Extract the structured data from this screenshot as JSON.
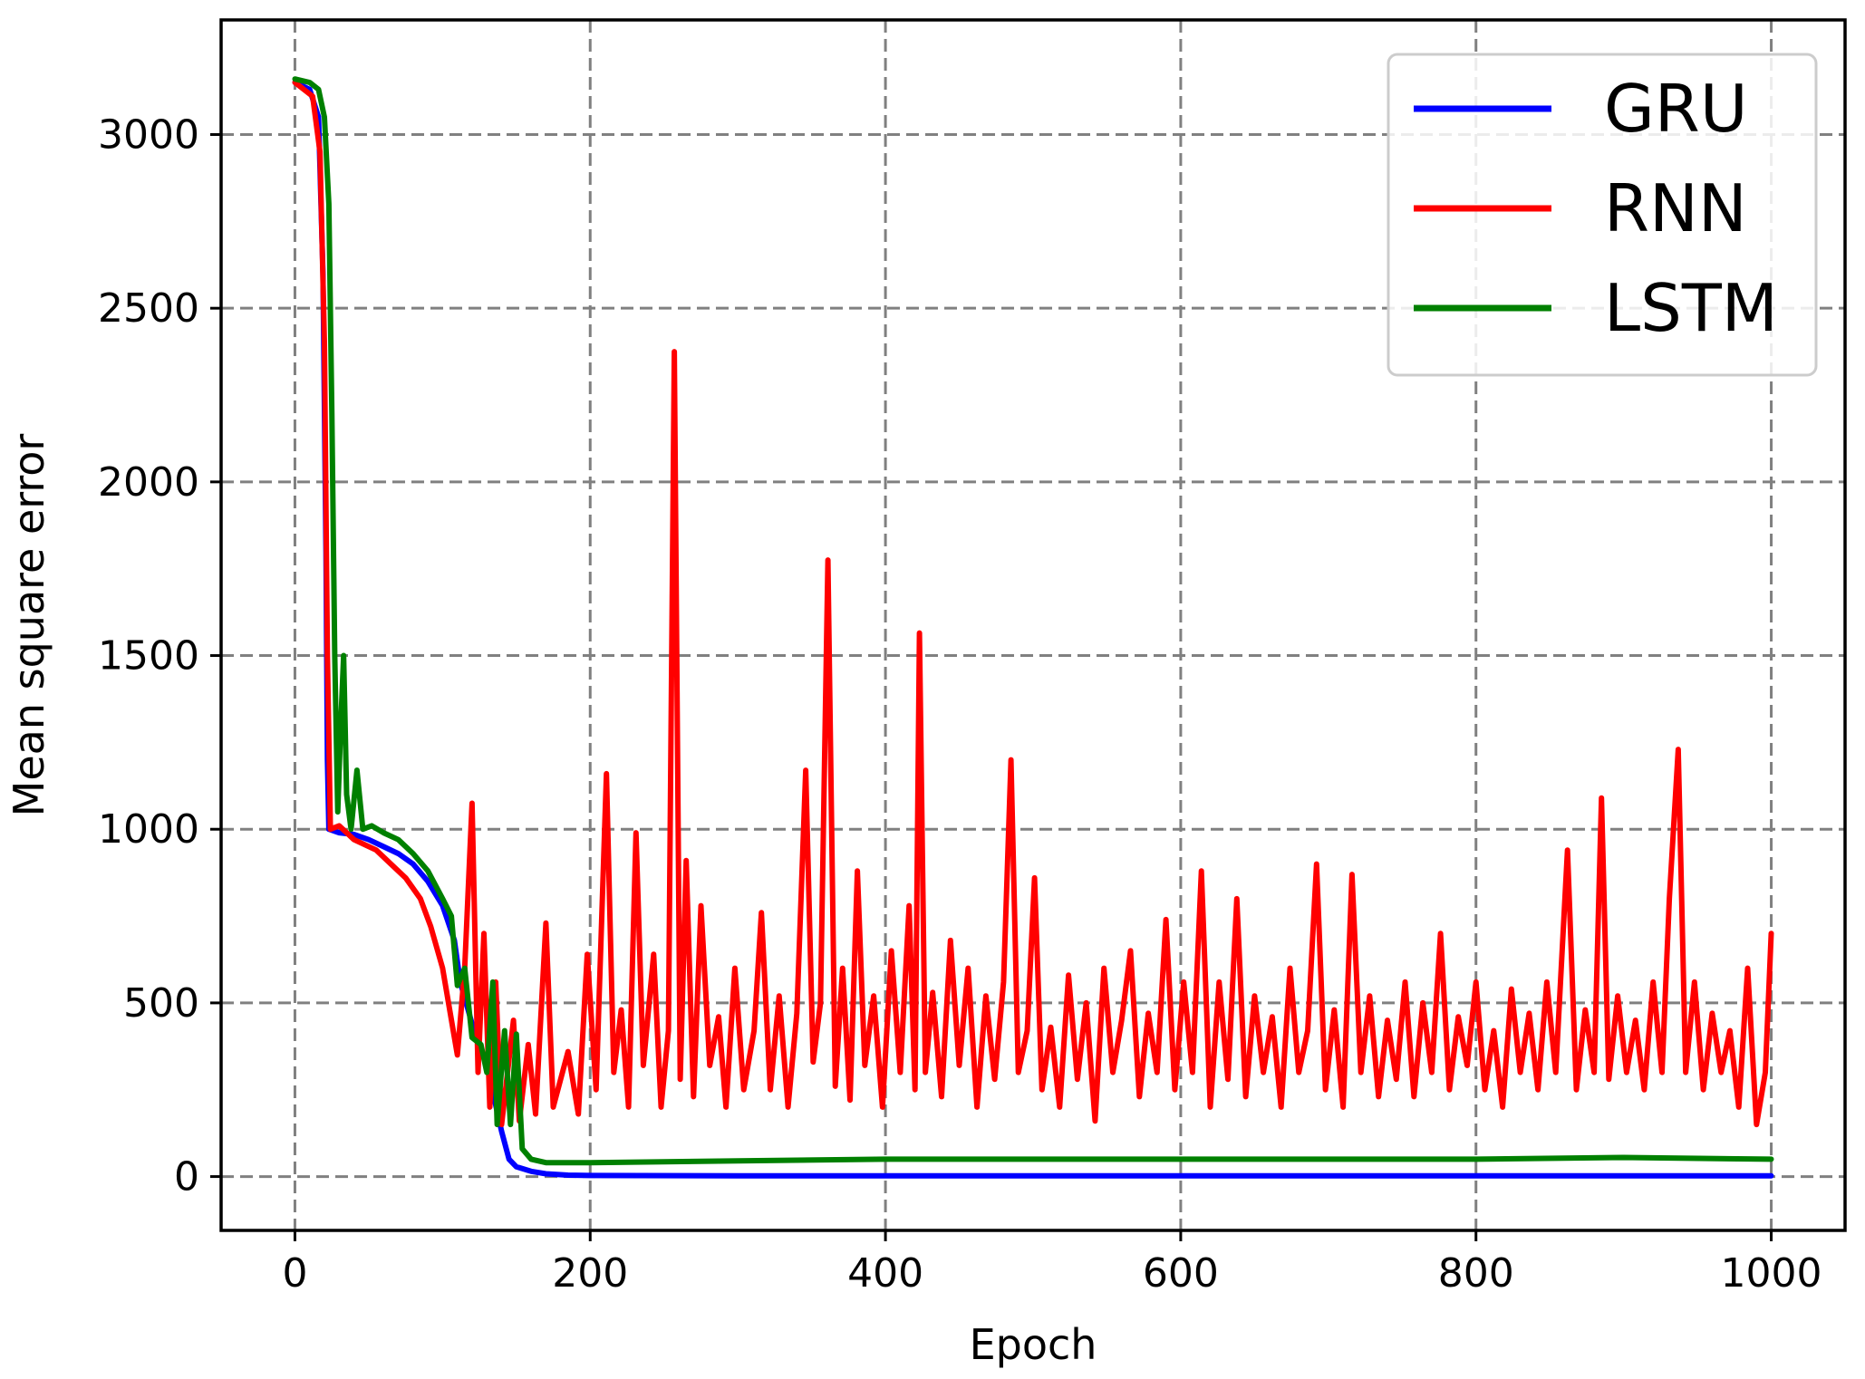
{
  "chart_data": {
    "type": "line",
    "title": "",
    "xlabel": "Epoch",
    "ylabel": "Mean square error",
    "xlim": [
      -50,
      1050
    ],
    "ylim": [
      -155,
      3330
    ],
    "xticks": [
      0,
      200,
      400,
      600,
      800,
      1000
    ],
    "yticks": [
      0,
      500,
      1000,
      1500,
      2000,
      2500,
      3000
    ],
    "grid": true,
    "legend": "top-right",
    "series": [
      {
        "name": "GRU",
        "color": "#0000ff",
        "points": [
          [
            0,
            3150
          ],
          [
            10,
            3130
          ],
          [
            16,
            3050
          ],
          [
            19,
            2600
          ],
          [
            21,
            1800
          ],
          [
            22,
            1200
          ],
          [
            23,
            1000
          ],
          [
            30,
            990
          ],
          [
            40,
            985
          ],
          [
            50,
            970
          ],
          [
            60,
            950
          ],
          [
            70,
            930
          ],
          [
            80,
            900
          ],
          [
            90,
            850
          ],
          [
            100,
            780
          ],
          [
            108,
            680
          ],
          [
            112,
            560
          ],
          [
            120,
            440
          ],
          [
            130,
            320
          ],
          [
            140,
            130
          ],
          [
            145,
            50
          ],
          [
            150,
            28
          ],
          [
            160,
            15
          ],
          [
            170,
            8
          ],
          [
            185,
            4
          ],
          [
            200,
            3
          ],
          [
            300,
            2
          ],
          [
            400,
            2
          ],
          [
            500,
            2
          ],
          [
            600,
            2
          ],
          [
            700,
            2
          ],
          [
            800,
            2
          ],
          [
            900,
            2
          ],
          [
            1000,
            2
          ]
        ]
      },
      {
        "name": "RNN",
        "color": "#ff0000",
        "points": [
          [
            0,
            3150
          ],
          [
            12,
            3110
          ],
          [
            17,
            2950
          ],
          [
            20,
            2400
          ],
          [
            22,
            1500
          ],
          [
            24,
            1000
          ],
          [
            30,
            1010
          ],
          [
            40,
            970
          ],
          [
            55,
            940
          ],
          [
            65,
            900
          ],
          [
            75,
            860
          ],
          [
            85,
            800
          ],
          [
            92,
            720
          ],
          [
            100,
            600
          ],
          [
            110,
            350
          ],
          [
            115,
            600
          ],
          [
            120,
            1075
          ],
          [
            124,
            300
          ],
          [
            128,
            700
          ],
          [
            132,
            200
          ],
          [
            136,
            560
          ],
          [
            140,
            150
          ],
          [
            148,
            450
          ],
          [
            152,
            160
          ],
          [
            158,
            380
          ],
          [
            163,
            180
          ],
          [
            170,
            730
          ],
          [
            175,
            200
          ],
          [
            185,
            360
          ],
          [
            192,
            180
          ],
          [
            198,
            640
          ],
          [
            204,
            250
          ],
          [
            211,
            1160
          ],
          [
            216,
            300
          ],
          [
            221,
            480
          ],
          [
            226,
            200
          ],
          [
            231,
            990
          ],
          [
            236,
            320
          ],
          [
            243,
            640
          ],
          [
            248,
            200
          ],
          [
            253,
            420
          ],
          [
            257,
            2375
          ],
          [
            261,
            280
          ],
          [
            265,
            910
          ],
          [
            270,
            230
          ],
          [
            275,
            780
          ],
          [
            281,
            320
          ],
          [
            287,
            460
          ],
          [
            292,
            200
          ],
          [
            298,
            600
          ],
          [
            304,
            250
          ],
          [
            311,
            420
          ],
          [
            316,
            760
          ],
          [
            322,
            250
          ],
          [
            328,
            520
          ],
          [
            334,
            200
          ],
          [
            340,
            470
          ],
          [
            346,
            1170
          ],
          [
            351,
            330
          ],
          [
            356,
            500
          ],
          [
            361,
            1775
          ],
          [
            366,
            260
          ],
          [
            371,
            600
          ],
          [
            376,
            220
          ],
          [
            381,
            880
          ],
          [
            386,
            320
          ],
          [
            392,
            520
          ],
          [
            398,
            200
          ],
          [
            404,
            650
          ],
          [
            410,
            300
          ],
          [
            416,
            780
          ],
          [
            420,
            250
          ],
          [
            423,
            1565
          ],
          [
            427,
            300
          ],
          [
            432,
            530
          ],
          [
            438,
            230
          ],
          [
            444,
            680
          ],
          [
            450,
            320
          ],
          [
            456,
            600
          ],
          [
            462,
            200
          ],
          [
            468,
            520
          ],
          [
            474,
            280
          ],
          [
            480,
            560
          ],
          [
            485,
            1200
          ],
          [
            490,
            300
          ],
          [
            496,
            420
          ],
          [
            501,
            860
          ],
          [
            506,
            250
          ],
          [
            512,
            430
          ],
          [
            518,
            200
          ],
          [
            524,
            580
          ],
          [
            530,
            280
          ],
          [
            536,
            500
          ],
          [
            542,
            160
          ],
          [
            548,
            600
          ],
          [
            554,
            300
          ],
          [
            560,
            450
          ],
          [
            566,
            650
          ],
          [
            572,
            230
          ],
          [
            578,
            470
          ],
          [
            584,
            300
          ],
          [
            590,
            740
          ],
          [
            596,
            250
          ],
          [
            602,
            560
          ],
          [
            608,
            300
          ],
          [
            614,
            880
          ],
          [
            620,
            200
          ],
          [
            626,
            560
          ],
          [
            632,
            280
          ],
          [
            638,
            800
          ],
          [
            644,
            230
          ],
          [
            650,
            520
          ],
          [
            656,
            300
          ],
          [
            662,
            460
          ],
          [
            668,
            200
          ],
          [
            674,
            600
          ],
          [
            680,
            300
          ],
          [
            686,
            420
          ],
          [
            692,
            900
          ],
          [
            698,
            250
          ],
          [
            704,
            480
          ],
          [
            710,
            200
          ],
          [
            716,
            870
          ],
          [
            722,
            300
          ],
          [
            728,
            520
          ],
          [
            734,
            230
          ],
          [
            740,
            450
          ],
          [
            746,
            280
          ],
          [
            752,
            560
          ],
          [
            758,
            230
          ],
          [
            764,
            500
          ],
          [
            770,
            300
          ],
          [
            776,
            700
          ],
          [
            782,
            250
          ],
          [
            788,
            460
          ],
          [
            794,
            320
          ],
          [
            800,
            560
          ],
          [
            806,
            250
          ],
          [
            812,
            420
          ],
          [
            818,
            200
          ],
          [
            824,
            540
          ],
          [
            830,
            300
          ],
          [
            836,
            470
          ],
          [
            842,
            250
          ],
          [
            848,
            560
          ],
          [
            854,
            300
          ],
          [
            862,
            940
          ],
          [
            868,
            250
          ],
          [
            874,
            480
          ],
          [
            880,
            300
          ],
          [
            885,
            1090
          ],
          [
            890,
            280
          ],
          [
            896,
            520
          ],
          [
            902,
            300
          ],
          [
            908,
            450
          ],
          [
            914,
            250
          ],
          [
            920,
            560
          ],
          [
            926,
            300
          ],
          [
            931,
            800
          ],
          [
            937,
            1230
          ],
          [
            942,
            300
          ],
          [
            948,
            560
          ],
          [
            954,
            250
          ],
          [
            960,
            470
          ],
          [
            966,
            300
          ],
          [
            972,
            420
          ],
          [
            978,
            200
          ],
          [
            984,
            600
          ],
          [
            990,
            150
          ],
          [
            996,
            300
          ],
          [
            1000,
            700
          ]
        ]
      },
      {
        "name": "LSTM",
        "color": "#008000",
        "points": [
          [
            0,
            3160
          ],
          [
            10,
            3150
          ],
          [
            16,
            3130
          ],
          [
            20,
            3050
          ],
          [
            23,
            2800
          ],
          [
            25,
            2200
          ],
          [
            27,
            1500
          ],
          [
            29,
            1050
          ],
          [
            31,
            1300
          ],
          [
            33,
            1500
          ],
          [
            35,
            1100
          ],
          [
            38,
            1000
          ],
          [
            42,
            1170
          ],
          [
            46,
            1000
          ],
          [
            52,
            1010
          ],
          [
            60,
            990
          ],
          [
            70,
            970
          ],
          [
            80,
            930
          ],
          [
            90,
            880
          ],
          [
            100,
            800
          ],
          [
            106,
            750
          ],
          [
            110,
            550
          ],
          [
            115,
            600
          ],
          [
            120,
            400
          ],
          [
            126,
            380
          ],
          [
            130,
            300
          ],
          [
            134,
            560
          ],
          [
            137,
            150
          ],
          [
            142,
            420
          ],
          [
            146,
            150
          ],
          [
            150,
            410
          ],
          [
            154,
            80
          ],
          [
            160,
            50
          ],
          [
            170,
            40
          ],
          [
            200,
            40
          ],
          [
            300,
            45
          ],
          [
            400,
            50
          ],
          [
            500,
            50
          ],
          [
            600,
            50
          ],
          [
            700,
            50
          ],
          [
            800,
            50
          ],
          [
            900,
            55
          ],
          [
            1000,
            50
          ]
        ]
      }
    ]
  }
}
